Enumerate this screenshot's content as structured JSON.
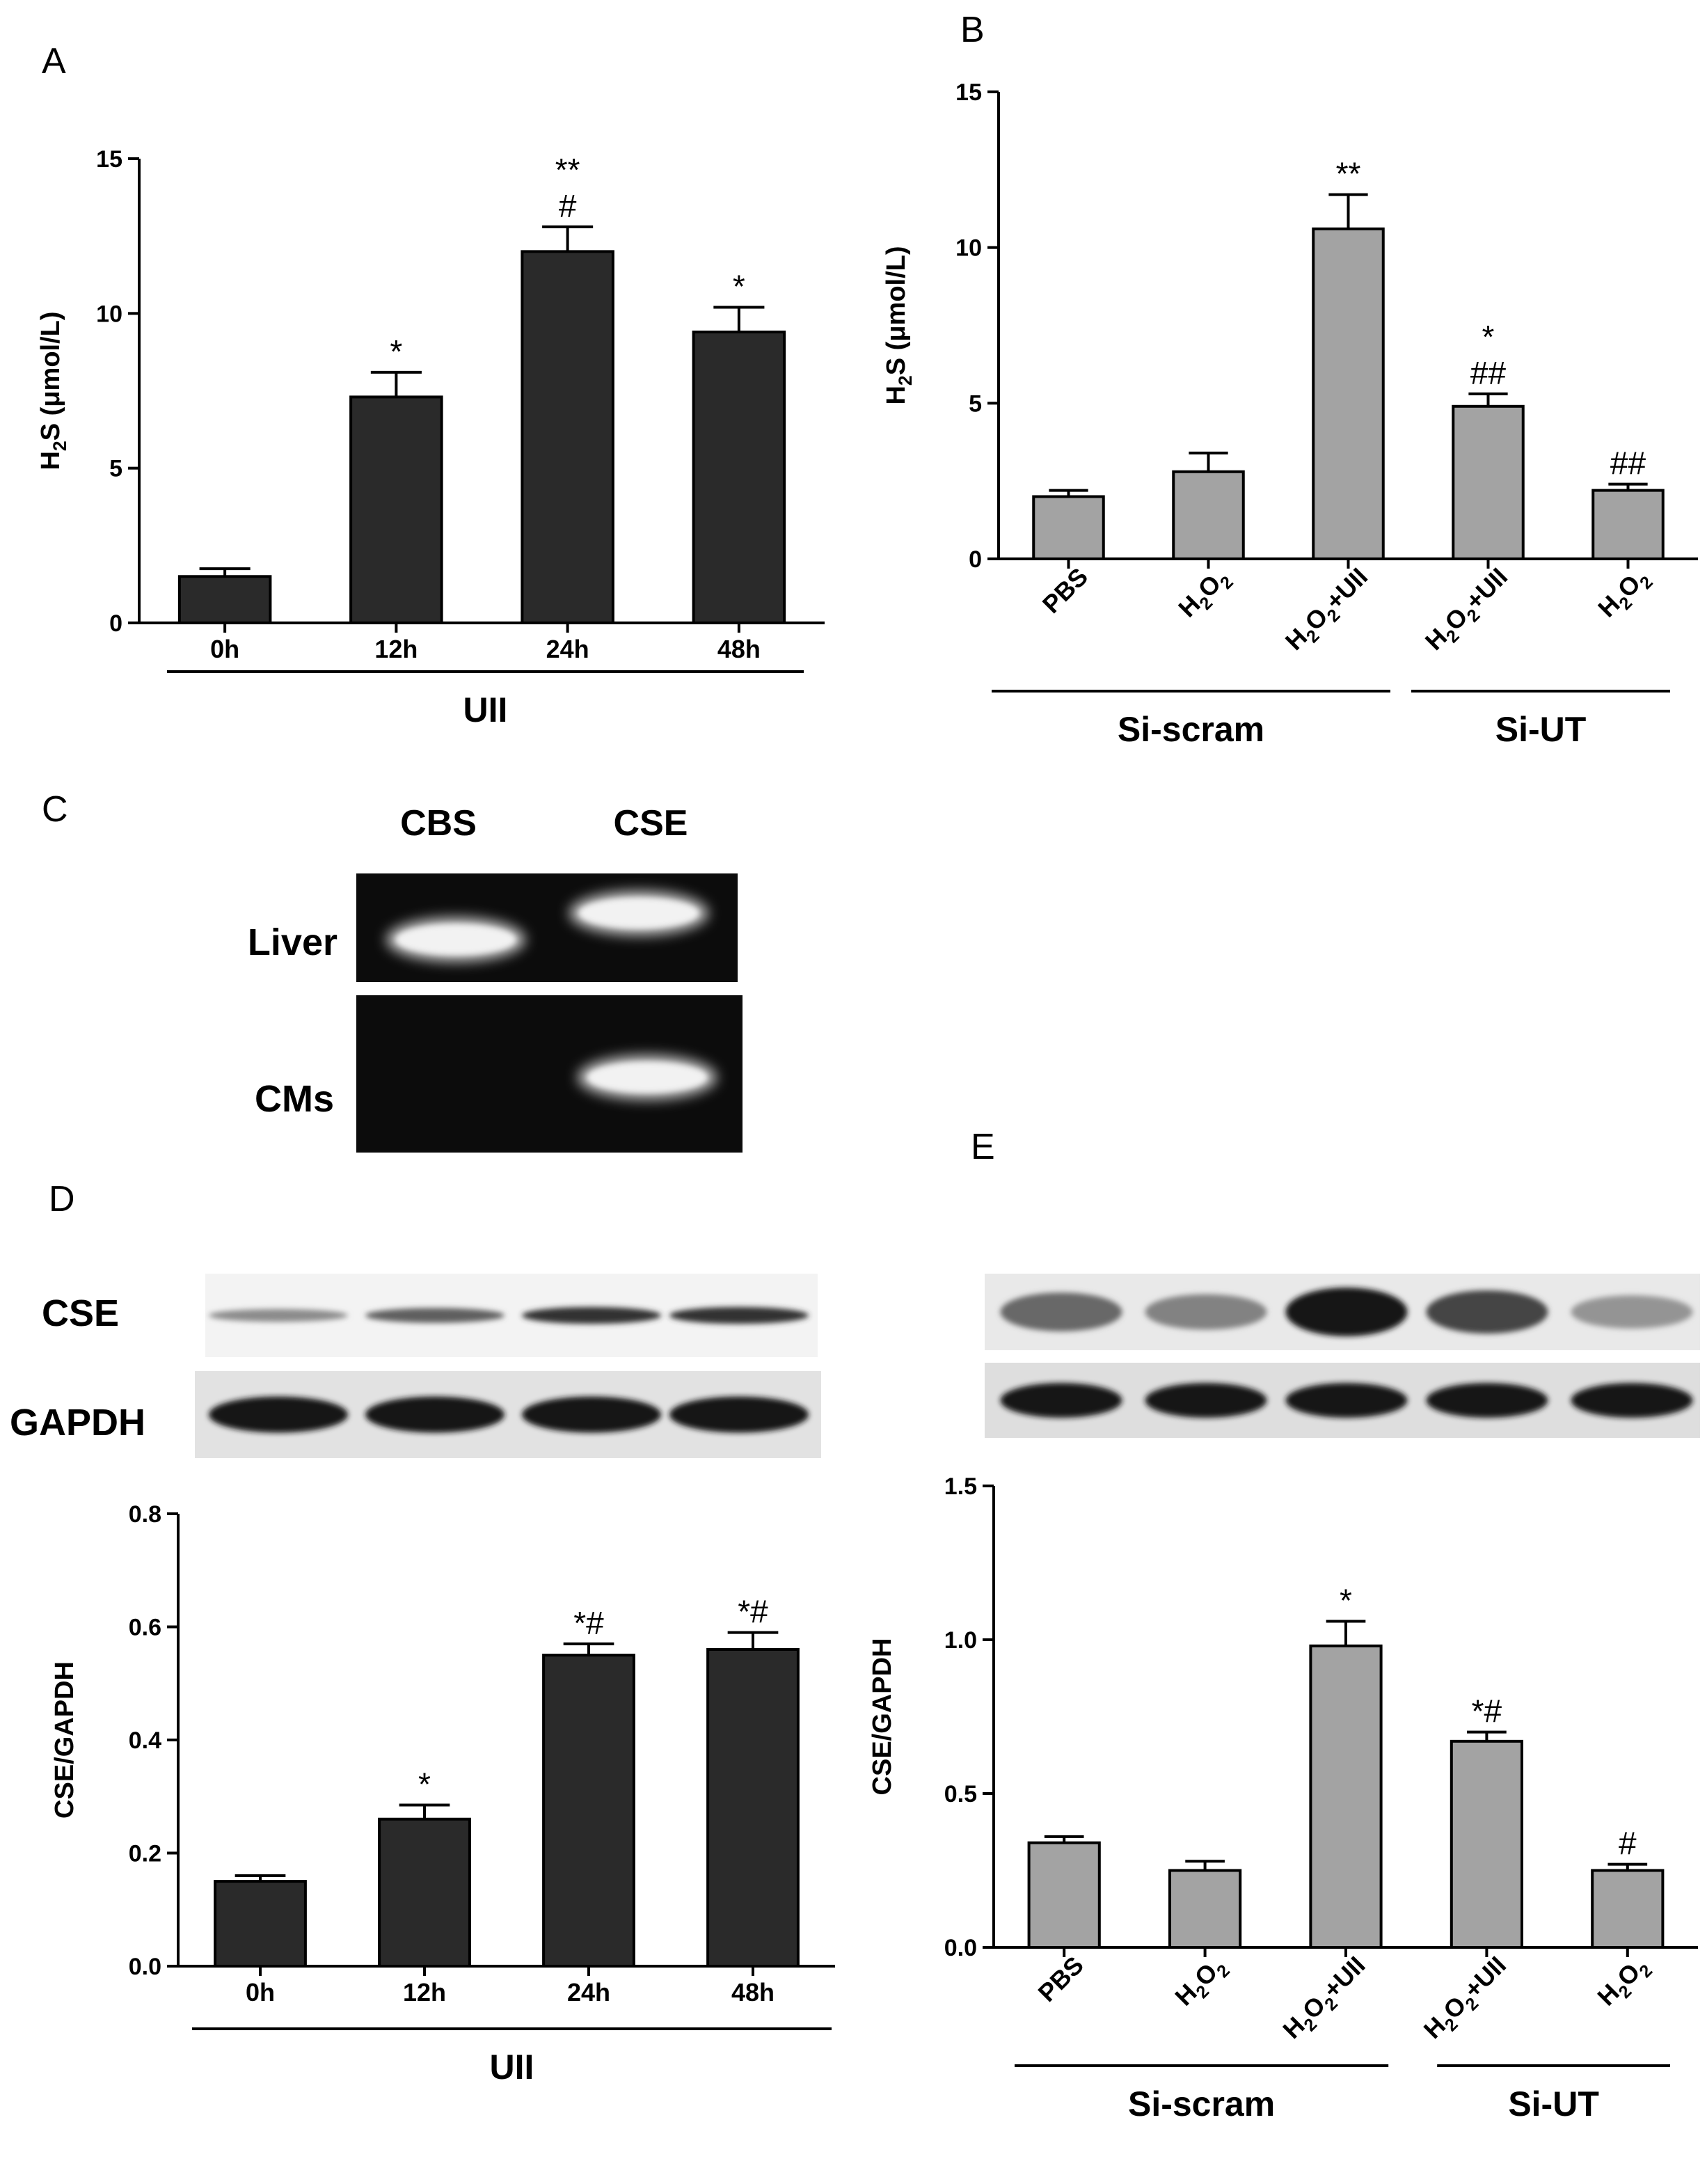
{
  "colors": {
    "dark_bar": "#2a2a2a",
    "gray_bar": "#a3a3a3",
    "gel_bg": "#0c0c0c",
    "band_glow": "#f2f2f2"
  },
  "panels": {
    "C": {
      "letter": "C",
      "columns": [
        "CBS",
        "CSE"
      ],
      "rows": [
        "Liver",
        "CMs"
      ],
      "bands": [
        {
          "row": "Liver",
          "column": "CBS",
          "present": true
        },
        {
          "row": "Liver",
          "column": "CSE",
          "present": true
        },
        {
          "row": "CMs",
          "column": "CBS",
          "present": false
        },
        {
          "row": "CMs",
          "column": "CSE",
          "present": true
        }
      ]
    },
    "D_blot": {
      "rows": [
        "CSE",
        "GAPDH"
      ],
      "cse_intensity": [
        0.35,
        0.6,
        0.85,
        0.85
      ],
      "gapdh_intensity": [
        1,
        1,
        1,
        1
      ]
    },
    "E_blot": {
      "cse_intensity": [
        0.55,
        0.4,
        1.0,
        0.75,
        0.3
      ],
      "gapdh_intensity": [
        1,
        1,
        1,
        1,
        1
      ]
    }
  },
  "chart_data": [
    {
      "panel": "A",
      "type": "bar",
      "title": "",
      "ylabel": "H2S (μmol/L)",
      "ylim": [
        0,
        15
      ],
      "yticks": [
        "0",
        "5",
        "10",
        "15"
      ],
      "categories": [
        "0h",
        "12h",
        "24h",
        "48h"
      ],
      "values": [
        1.5,
        7.3,
        12.0,
        9.4
      ],
      "errors": [
        0.25,
        0.8,
        0.8,
        0.8
      ],
      "annotations": [
        "",
        "*",
        "**\n#",
        "*"
      ],
      "groups": [
        {
          "label": "UII",
          "from": 0,
          "to": 3
        }
      ],
      "bar_color": "dark"
    },
    {
      "panel": "B",
      "type": "bar",
      "title": "",
      "ylabel": "H2S (μmol/L)",
      "ylim": [
        0,
        15
      ],
      "yticks": [
        "0",
        "5",
        "10",
        "15"
      ],
      "categories": [
        "PBS",
        "H2O2",
        "H2O2+UII",
        "H2O2+UII",
        "H2O2"
      ],
      "values": [
        2.0,
        2.8,
        10.6,
        4.9,
        2.2
      ],
      "errors": [
        0.2,
        0.6,
        1.1,
        0.4,
        0.2
      ],
      "annotations": [
        "",
        "",
        "**",
        "*\n##",
        "##"
      ],
      "groups": [
        {
          "label": "Si-scram",
          "from": 0,
          "to": 2
        },
        {
          "label": "Si-UT",
          "from": 3,
          "to": 4
        }
      ],
      "bar_color": "gray"
    },
    {
      "panel": "D",
      "type": "bar",
      "title": "",
      "ylabel": "CSE/GAPDH",
      "ylim": [
        0,
        0.8
      ],
      "yticks": [
        "0.0",
        "0.2",
        "0.4",
        "0.6",
        "0.8"
      ],
      "categories": [
        "0h",
        "12h",
        "24h",
        "48h"
      ],
      "values": [
        0.15,
        0.26,
        0.55,
        0.56
      ],
      "errors": [
        0.01,
        0.025,
        0.02,
        0.03
      ],
      "annotations": [
        "",
        "*",
        "*#",
        "*#"
      ],
      "groups": [
        {
          "label": "UII",
          "from": 0,
          "to": 3
        }
      ],
      "bar_color": "dark"
    },
    {
      "panel": "E",
      "type": "bar",
      "title": "",
      "ylabel": "CSE/GAPDH",
      "ylim": [
        0,
        1.5
      ],
      "yticks": [
        "0.0",
        "0.5",
        "1.0",
        "1.5"
      ],
      "categories": [
        "PBS",
        "H2O2",
        "H2O2+UII",
        "H2O2+UII",
        "H2O2"
      ],
      "values": [
        0.34,
        0.25,
        0.98,
        0.67,
        0.25
      ],
      "errors": [
        0.02,
        0.03,
        0.08,
        0.03,
        0.02
      ],
      "annotations": [
        "",
        "",
        "*",
        "*#",
        "#"
      ],
      "groups": [
        {
          "label": "Si-scram",
          "from": 0,
          "to": 2
        },
        {
          "label": "Si-UT",
          "from": 3,
          "to": 4
        }
      ],
      "bar_color": "gray"
    }
  ]
}
